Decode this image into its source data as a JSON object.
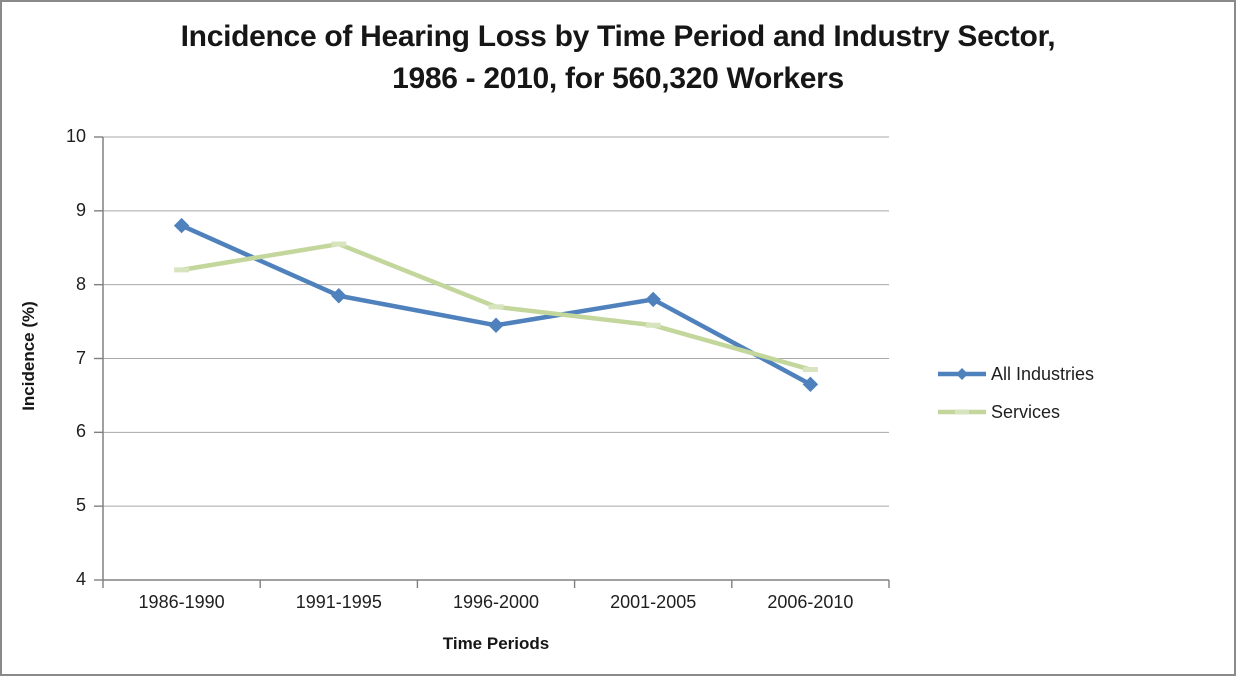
{
  "window": {
    "background_color": "#ffffff",
    "border_color": "#8a8a8a"
  },
  "chart_data": {
    "type": "line",
    "title": "Incidence of Hearing Loss by Time Period and Industry Sector, 1986 - 2010, for 560,320 Workers",
    "title_lines": [
      "Incidence of Hearing Loss by Time Period and Industry Sector,",
      "1986 - 2010, for 560,320 Workers"
    ],
    "xlabel": "Time Periods",
    "ylabel": "Incidence (%)",
    "categories": [
      "1986-1990",
      "1991-1995",
      "1996-2000",
      "2001-2005",
      "2006-2010"
    ],
    "series": [
      {
        "name": "All Industries",
        "values": [
          8.8,
          7.85,
          7.45,
          7.8,
          6.65
        ],
        "color": "#4F81BD",
        "marker": "diamond",
        "marker_color": "#4F81BD"
      },
      {
        "name": "Services",
        "values": [
          8.2,
          8.55,
          7.7,
          7.45,
          6.85
        ],
        "color": "#C3D69B",
        "marker": "dash",
        "marker_color": "#D7E4BD"
      }
    ],
    "ylim": [
      4,
      10
    ],
    "yticks": [
      4,
      5,
      6,
      7,
      8,
      9,
      10
    ],
    "grid": true,
    "legend_position": "right",
    "colors": {
      "axis": "#808080",
      "gridline": "#a8a8a8",
      "tick_text": "#1f1f1f",
      "title_text": "#161616"
    }
  }
}
